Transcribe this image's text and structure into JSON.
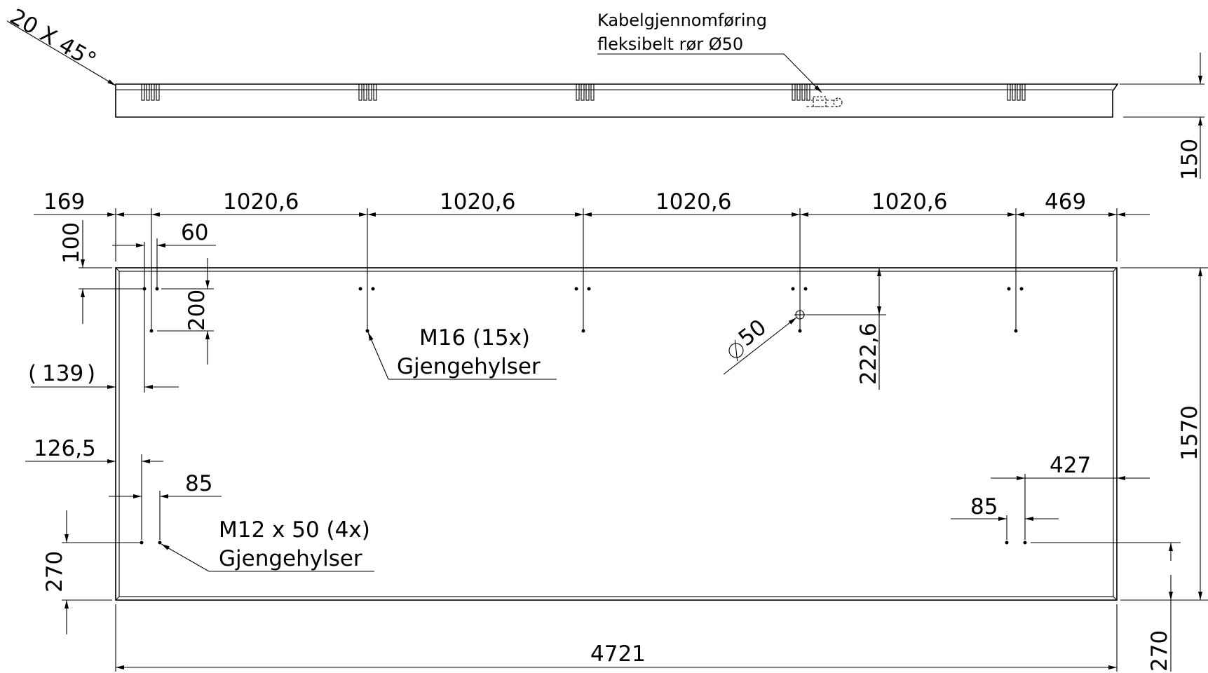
{
  "chamfer_note": "20 X 45°",
  "cable_note": {
    "line1": "Kabelgjennomføring",
    "line2": "fleksibelt rør Ø50"
  },
  "dimensions": {
    "height_side": "150",
    "top_169": "169",
    "top_1020_a": "1020,6",
    "top_1020_b": "1020,6",
    "top_1020_c": "1020,6",
    "top_1020_d": "1020,6",
    "top_469": "469",
    "left_100": "100",
    "d60": "60",
    "d200": "200",
    "d139": "139",
    "d126": "126,5",
    "d85_left": "85",
    "d270_left": "270",
    "dia50": "50",
    "d222": "222,6",
    "d1570": "1570",
    "d427": "427",
    "d85_right": "85",
    "d270_right": "270",
    "d4721": "4721"
  },
  "callouts": {
    "m16_line1": "M16 (15x)",
    "m16_line2": "Gjengehylser",
    "m12_line1": "M12 x 50 (4x)",
    "m12_line2": "Gjengehylser"
  }
}
